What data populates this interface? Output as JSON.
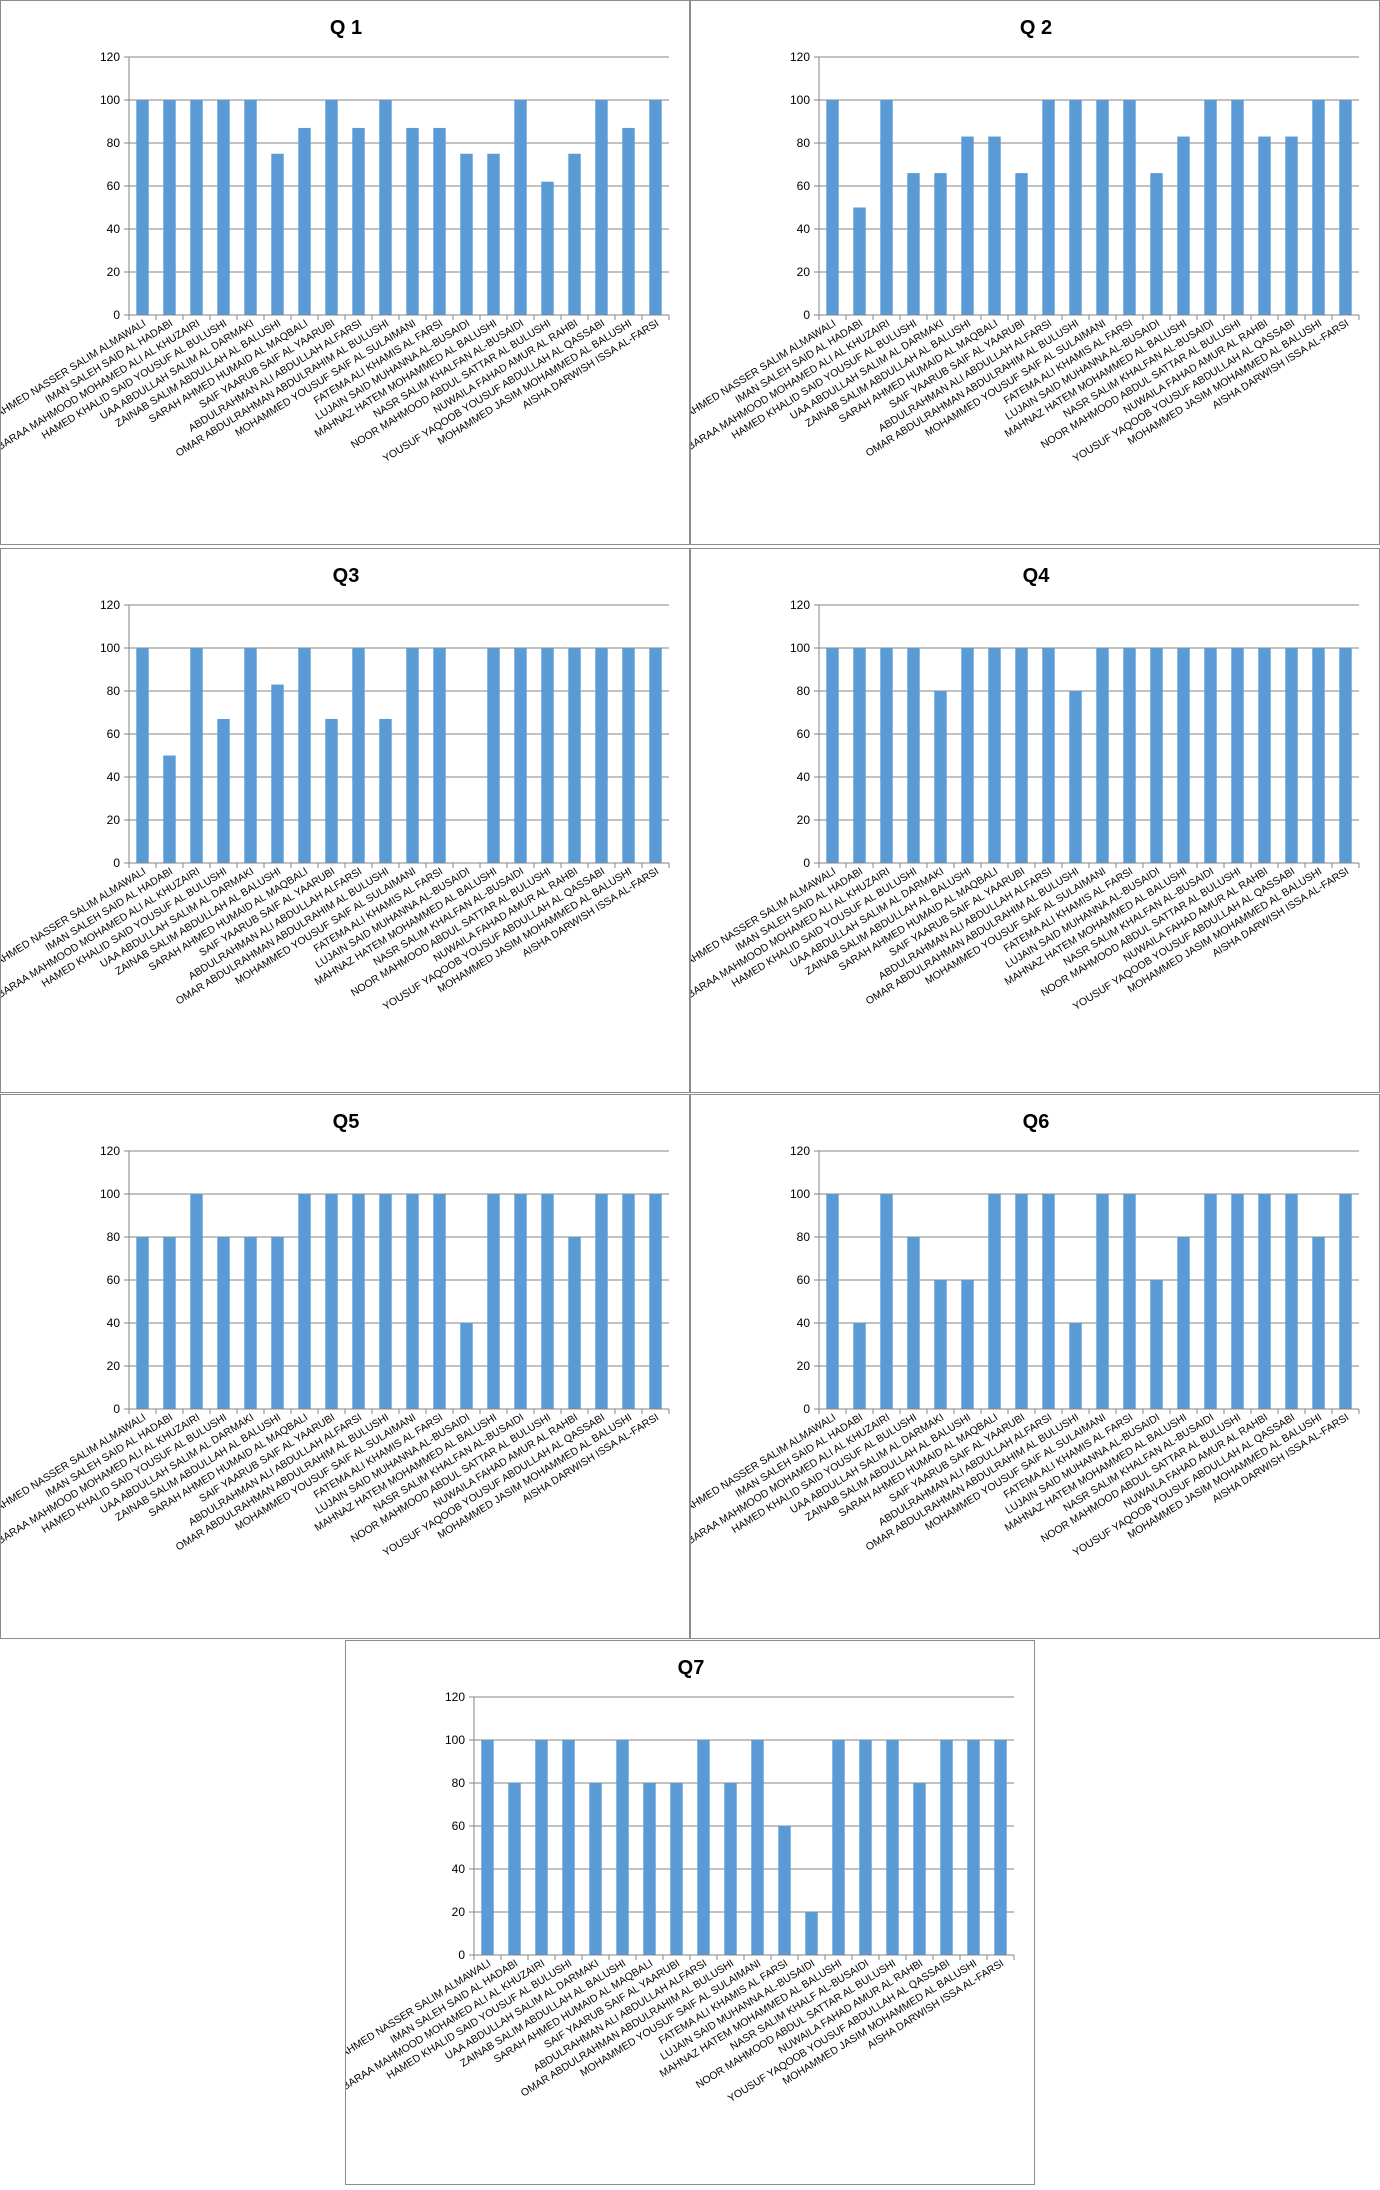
{
  "chart_data": [
    {
      "type": "bar",
      "title": "Q 1",
      "categories": [
        "AHMED NASSER SALIM ALMAWALI",
        "IMAN SALEH SAID AL HADABI",
        "BARAA MAHMOOD MOHAMED ALI AL KHUZAIRI",
        "HAMED KHALID SAID YOUSUF AL BULUSHI",
        "UAA ABDULLAH SALIM AL DARMAKI",
        "ZAINAB SALIM ABDULLAH AL BALUSHI",
        "SARAH AHMED HUMAID AL MAQBALI",
        "SAIF YAARUB SAIF AL YAARUBI",
        "ABDULRAHMAN ALI ABDULLAH ALFARSI",
        "OMAR ABDULRAHMAN ABDULRAHIM AL BULUSHI",
        "MOHAMMED YOUSUF SAIF AL SULAIMANI",
        "FATEMA ALI KHAMIS AL FARSI",
        "LUJAIN SAID MUHANNA AL-BUSAIDI",
        "MAHNAZ HATEM MOHAMMED AL BALUSHI",
        "NASR SALIM KHALFAN AL-BUSAIDI",
        "NOOR MAHMOOD ABDUL SATTAR AL BULUSHI",
        "NUWAILA FAHAD AMUR AL RAHBI",
        "YOUSUF YAQOOB YOUSUF ABDULLAH AL QASSABI",
        "MOHAMMED JASIM MOHAMMED AL BALUSHI",
        "AISHA DARWISH ISSA AL-FARSI"
      ],
      "values": [
        100,
        100,
        100,
        100,
        100,
        75,
        87,
        100,
        87,
        100,
        87,
        87,
        75,
        75,
        100,
        62,
        75,
        100,
        87,
        100
      ],
      "ylim": [
        0,
        120
      ],
      "yticks": [
        0,
        20,
        40,
        60,
        80,
        100,
        120
      ]
    },
    {
      "type": "bar",
      "title": "Q 2",
      "categories": [
        "AHMED NASSER SALIM ALMAWALI",
        "IMAN SALEH SAID AL HADABI",
        "BARAA MAHMOOD MOHAMED ALI AL KHUZAIRI",
        "HAMED KHALID SAID YOUSUF AL BULUSHI",
        "UAA ABDULLAH SALIM AL DARMAKI",
        "ZAINAB SALIM ABDULLAH AL BALUSHI",
        "SARAH AHMED HUMAID AL MAQBALI",
        "SAIF YAARUB SAIF AL YAARUBI",
        "ABDULRAHMAN ALI ABDULLAH ALFARSI",
        "OMAR ABDULRAHMAN ABDULRAHIM AL BULUSHI",
        "MOHAMMED YOUSUF SAIF AL SULAIMANI",
        "FATEMA ALI KHAMIS AL FARSI",
        "LUJAIN SAID MUHANNA AL-BUSAIDI",
        "MAHNAZ HATEM MOHAMMED AL BALUSHI",
        "NASR SALIM KHALFAN AL-BUSAIDI",
        "NOOR MAHMOOD ABDUL SATTAR AL BULUSHI",
        "NUWAILA FAHAD AMUR AL RAHBI",
        "YOUSUF YAQOOB YOUSUF ABDULLAH AL QASSABI",
        "MOHAMMED JASIM MOHAMMED AL BALUSHI",
        "AISHA DARWISH ISSA AL-FARSI"
      ],
      "values": [
        100,
        50,
        100,
        66,
        66,
        83,
        83,
        66,
        100,
        100,
        100,
        100,
        66,
        83,
        100,
        100,
        83,
        83,
        100,
        100
      ],
      "ylim": [
        0,
        120
      ],
      "yticks": [
        0,
        20,
        40,
        60,
        80,
        100,
        120
      ]
    },
    {
      "type": "bar",
      "title": "Q3",
      "categories": [
        "AHMED NASSER SALIM ALMAWALI",
        "IMAN SALEH SAID AL HADABI",
        "BARAA MAHMOOD MOHAMED ALI AL KHUZAIRI",
        "HAMED KHALID SAID YOUSUF AL BULUSHI",
        "UAA ABDULLAH SALIM AL DARMAKI",
        "ZAINAB SALIM ABDULLAH AL BALUSHI",
        "SARAH AHMED HUMAID AL MAQBALI",
        "SAIF YAARUB SAIF AL YAARUBI",
        "ABDULRAHMAN ALI ABDULLAH ALFARSI",
        "OMAR ABDULRAHMAN ABDULRAHIM AL BULUSHI",
        "MOHAMMED YOUSUF SAIF AL SULAIMANI",
        "FATEMA ALI KHAMIS AL FARSI",
        "LUJAIN SAID MUHANNA AL-BUSAIDI",
        "MAHNAZ HATEM MOHAMMED AL BALUSHI",
        "NASR SALIM KHALFAN AL-BUSAIDI",
        "NOOR MAHMOOD ABDUL SATTAR AL BULUSHI",
        "NUWAILA FAHAD AMUR AL RAHBI",
        "YOUSUF YAQOOB YOUSUF ABDULLAH AL QASSABI",
        "MOHAMMED JASIM MOHAMMED AL BALUSHI",
        "AISHA DARWISH ISSA AL-FARSI"
      ],
      "values": [
        100,
        50,
        100,
        67,
        100,
        83,
        100,
        67,
        100,
        67,
        100,
        100,
        0,
        100,
        100,
        100,
        100,
        100,
        100,
        100
      ],
      "ylim": [
        0,
        120
      ],
      "yticks": [
        0,
        20,
        40,
        60,
        80,
        100,
        120
      ]
    },
    {
      "type": "bar",
      "title": "Q4",
      "categories": [
        "AHMED NASSER SALIM ALMAWALI",
        "IMAN SALEH SAID AL HADABI",
        "BARAA MAHMOOD MOHAMED ALI AL KHUZAIRI",
        "HAMED KHALID SAID YOUSUF AL BULUSHI",
        "UAA ABDULLAH SALIM AL DARMAKI",
        "ZAINAB SALIM ABDULLAH AL BALUSHI",
        "SARAH AHMED HUMAID AL MAQBALI",
        "SAIF YAARUB SAIF AL YAARUBI",
        "ABDULRAHMAN ALI ABDULLAH ALFARSI",
        "OMAR ABDULRAHMAN ABDULRAHIM AL BULUSHI",
        "MOHAMMED YOUSUF SAIF AL SULAIMANI",
        "FATEMA ALI KHAMIS AL FARSI",
        "LUJAIN SAID MUHANNA AL-BUSAIDI",
        "MAHNAZ HATEM MOHAMMED AL BALUSHI",
        "NASR SALIM KHALFAN AL-BUSAIDI",
        "NOOR MAHMOOD ABDUL SATTAR AL BULUSHI",
        "NUWAILA FAHAD AMUR AL RAHBI",
        "YOUSUF YAQOOB YOUSUF ABDULLAH AL QASSABI",
        "MOHAMMED JASIM MOHAMMED AL BALUSHI",
        "AISHA DARWISH ISSA AL-FARSI"
      ],
      "values": [
        100,
        100,
        100,
        100,
        80,
        100,
        100,
        100,
        100,
        80,
        100,
        100,
        100,
        100,
        100,
        100,
        100,
        100,
        100,
        100
      ],
      "ylim": [
        0,
        120
      ],
      "yticks": [
        0,
        20,
        40,
        60,
        80,
        100,
        120
      ]
    },
    {
      "type": "bar",
      "title": "Q5",
      "categories": [
        "AHMED NASSER SALIM ALMAWALI",
        "IMAN SALEH SAID AL HADABI",
        "BARAA MAHMOOD MOHAMED ALI AL KHUZAIRI",
        "HAMED KHALID SAID YOUSUF AL BULUSHI",
        "UAA ABDULLAH SALIM AL DARMAKI",
        "ZAINAB SALIM ABDULLAH AL BALUSHI",
        "SARAH AHMED HUMAID AL MAQBALI",
        "SAIF YAARUB SAIF AL YAARUBI",
        "ABDULRAHMAN ALI ABDULLAH ALFARSI",
        "OMAR ABDULRAHMAN ABDULRAHIM AL BULUSHI",
        "MOHAMMED YOUSUF SAIF AL SULAIMANI",
        "FATEMA ALI KHAMIS AL FARSI",
        "LUJAIN SAID MUHANNA AL-BUSAIDI",
        "MAHNAZ HATEM MOHAMMED AL BALUSHI",
        "NASR SALIM KHALFAN AL-BUSAIDI",
        "NOOR MAHMOOD ABDUL SATTAR AL BULUSHI",
        "NUWAILA FAHAD AMUR AL RAHBI",
        "YOUSUF YAQOOB YOUSUF ABDULLAH AL QASSABI",
        "MOHAMMED JASIM MOHAMMED AL BALUSHI",
        "AISHA DARWISH ISSA AL-FARSI"
      ],
      "values": [
        80,
        80,
        100,
        80,
        80,
        80,
        100,
        100,
        100,
        100,
        100,
        100,
        40,
        100,
        100,
        100,
        80,
        100,
        100,
        100
      ],
      "ylim": [
        0,
        120
      ],
      "yticks": [
        0,
        20,
        40,
        60,
        80,
        100,
        120
      ]
    },
    {
      "type": "bar",
      "title": "Q6",
      "categories": [
        "AHMED NASSER SALIM ALMAWALI",
        "IMAN SALEH SAID AL HADABI",
        "BARAA MAHMOOD MOHAMED ALI AL KHUZAIRI",
        "HAMED KHALID SAID YOUSUF AL BULUSHI",
        "UAA ABDULLAH SALIM AL DARMAKI",
        "ZAINAB SALIM ABDULLAH AL BALUSHI",
        "SARAH AHMED HUMAID AL MAQBALI",
        "SAIF YAARUB SAIF AL YAARUBI",
        "ABDULRAHMAN ALI ABDULLAH ALFARSI",
        "OMAR ABDULRAHMAN ABDULRAHIM AL BULUSHI",
        "MOHAMMED YOUSUF SAIF AL SULAIMANI",
        "FATEMA ALI KHAMIS AL FARSI",
        "LUJAIN SAID MUHANNA AL-BUSAIDI",
        "MAHNAZ HATEM MOHAMMED AL BALUSHI",
        "NASR SALIM KHALFAN AL-BUSAIDI",
        "NOOR MAHMOOD ABDUL SATTAR AL BULUSHI",
        "NUWAILA FAHAD AMUR AL RAHBI",
        "YOUSUF YAQOOB YOUSUF ABDULLAH AL QASSABI",
        "MOHAMMED JASIM MOHAMMED AL BALUSHI",
        "AISHA DARWISH ISSA AL-FARSI"
      ],
      "values": [
        100,
        40,
        100,
        80,
        60,
        60,
        100,
        100,
        100,
        40,
        100,
        100,
        60,
        80,
        100,
        100,
        100,
        100,
        80,
        100
      ],
      "ylim": [
        0,
        120
      ],
      "yticks": [
        0,
        20,
        40,
        60,
        80,
        100,
        120
      ]
    },
    {
      "type": "bar",
      "title": "Q7",
      "categories": [
        "AHMED NASSER SALIM ALMAWALI",
        "IMAN SALEH SAID AL HADABI",
        "BARAA MAHMOOD MOHAMED ALI AL KHUZAIRI",
        "HAMED KHALID SAID YOUSUF AL BULUSHI",
        "UAA ABDULLAH SALIM AL DARMAKI",
        "ZAINAB SALIM ABDULLAH AL BALUSHI",
        "SARAH AHMED HUMAID AL MAQBALI",
        "SAIF YAARUB SAIF AL YAARUBI",
        "ABDULRAHMAN ALI ABDULLAH ALFARSI",
        "OMAR ABDULRAHMAN ABDULRAHIM AL BULUSHI",
        "MOHAMMED YOUSUF SAIF AL SULAIMANI",
        "FATEMA ALI KHAMIS AL FARSI",
        "LUJAIN SAID MUHANNA AL-BUSAIDI",
        "MAHNAZ HATEM MOHAMMED AL BALUSHI",
        "NASR SALIM KHALF AL-BUSAIDI",
        "NOOR MAHMOOD ABDUL SATTAR AL BULUSHI",
        "NUWAILA FAHAD AMUR AL RAHBI",
        "YOUSUF YAQOOB YOUSUF ABDULLAH AL QASSABI",
        "MOHAMMED JASIM MOHAMMED AL BALUSHI",
        "AISHA DARWISH ISSA AL-FARSI"
      ],
      "values": [
        100,
        80,
        100,
        100,
        80,
        100,
        80,
        80,
        100,
        80,
        100,
        60,
        20,
        100,
        100,
        100,
        80,
        100,
        100,
        100
      ],
      "ylim": [
        0,
        120
      ],
      "yticks": [
        0,
        20,
        40,
        60,
        80,
        100,
        120
      ]
    }
  ],
  "colors": {
    "bar": "#5b9bd5",
    "gridline": "#868686",
    "axis": "#868686",
    "text": "#000000",
    "panel_border": "#8c8c8c"
  }
}
